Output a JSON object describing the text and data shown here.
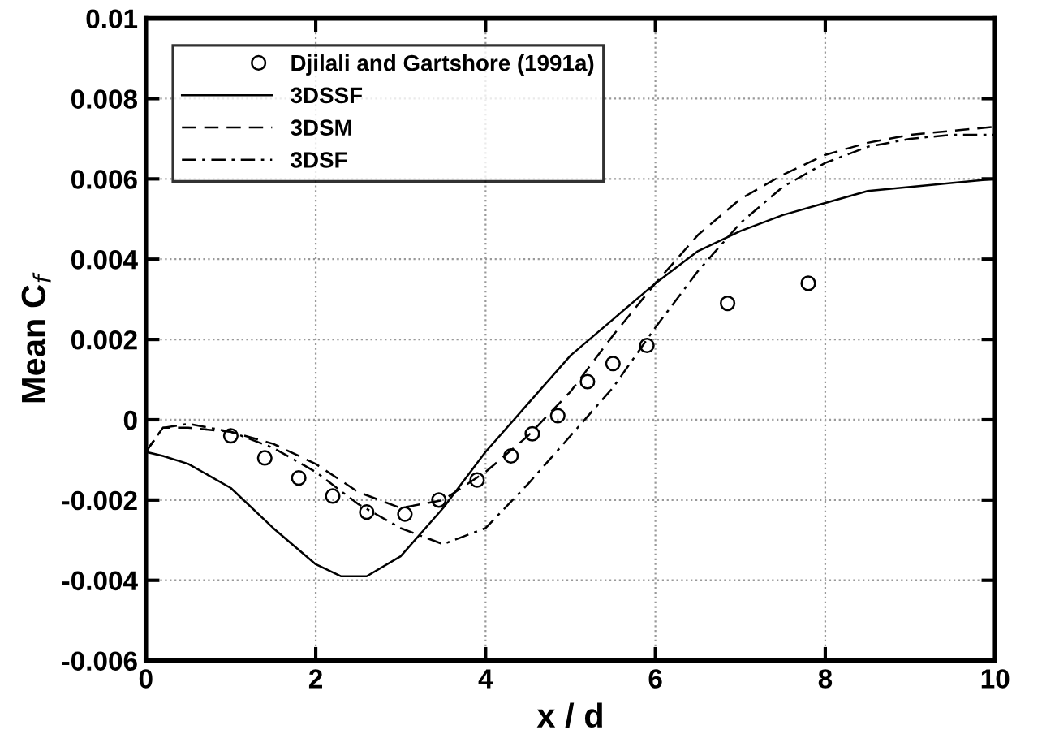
{
  "chart_data": {
    "type": "line",
    "xlabel": "x / d",
    "ylabel": "Mean C$_{f}$",
    "xlim": [
      0,
      10
    ],
    "ylim": [
      -0.006,
      0.01
    ],
    "xticks": [
      0,
      2,
      4,
      6,
      8,
      10
    ],
    "yticks": [
      -0.006,
      -0.004,
      -0.002,
      0,
      0.002,
      0.004,
      0.006,
      0.008,
      0.01
    ],
    "grid": true,
    "legend": "top left",
    "series": [
      {
        "name": "Djilali and Gartshore (1991a)",
        "type": "scatter",
        "marker": "circle",
        "color": "#000000",
        "x": [
          1.0,
          1.4,
          1.8,
          2.2,
          2.6,
          3.05,
          3.45,
          3.9,
          4.3,
          4.55,
          4.85,
          5.2,
          5.5,
          5.9,
          6.85,
          7.8
        ],
        "values": [
          -0.0004,
          -0.00095,
          -0.00145,
          -0.0019,
          -0.0023,
          -0.00235,
          -0.002,
          -0.0015,
          -0.0009,
          -0.00035,
          0.0001,
          0.00095,
          0.0014,
          0.00185,
          0.0029,
          0.0034
        ]
      },
      {
        "name": "3DSSF",
        "line_style": "solid",
        "color": "#000000",
        "x": [
          0,
          0.2,
          0.5,
          1,
          1.5,
          2,
          2.3,
          2.6,
          3,
          3.5,
          4,
          4.5,
          5,
          5.5,
          6,
          6.5,
          7,
          7.5,
          8,
          8.5,
          9,
          9.5,
          10
        ],
        "values": [
          -0.0008,
          -0.0009,
          -0.0011,
          -0.0017,
          -0.0027,
          -0.0036,
          -0.0039,
          -0.0039,
          -0.0034,
          -0.0022,
          -0.0008,
          0.0004,
          0.0016,
          0.0025,
          0.0034,
          0.0042,
          0.0047,
          0.0051,
          0.0054,
          0.0057,
          0.0058,
          0.0059,
          0.006
        ]
      },
      {
        "name": "3DSM",
        "line_style": "dashed",
        "color": "#000000",
        "x": [
          0,
          0.2,
          0.5,
          1,
          1.5,
          2,
          2.5,
          3,
          3.5,
          4,
          4.5,
          5,
          5.5,
          6,
          6.5,
          7,
          7.5,
          8,
          8.5,
          9,
          9.5,
          10
        ],
        "values": [
          -0.0008,
          -0.0002,
          -0.0002,
          -0.0003,
          -0.0006,
          -0.0011,
          -0.0018,
          -0.0022,
          -0.002,
          -0.0013,
          -0.0004,
          0.0007,
          0.0021,
          0.0034,
          0.0046,
          0.0055,
          0.0061,
          0.0066,
          0.0069,
          0.0071,
          0.0072,
          0.0073
        ]
      },
      {
        "name": "3DSF",
        "line_style": "dashdot",
        "color": "#000000",
        "x": [
          0,
          0.2,
          0.5,
          1,
          1.5,
          2,
          2.5,
          3,
          3.5,
          4,
          4.5,
          5,
          5.5,
          6,
          6.5,
          7,
          7.5,
          8,
          8.5,
          9,
          9.5,
          10
        ],
        "values": [
          -0.0008,
          -0.0002,
          -0.0001,
          -0.0003,
          -0.0007,
          -0.0013,
          -0.0021,
          -0.0027,
          -0.0031,
          -0.0027,
          -0.0016,
          -0.0004,
          0.0008,
          0.0023,
          0.0037,
          0.0049,
          0.0058,
          0.0064,
          0.0068,
          0.007,
          0.0071,
          0.0071
        ]
      }
    ]
  }
}
